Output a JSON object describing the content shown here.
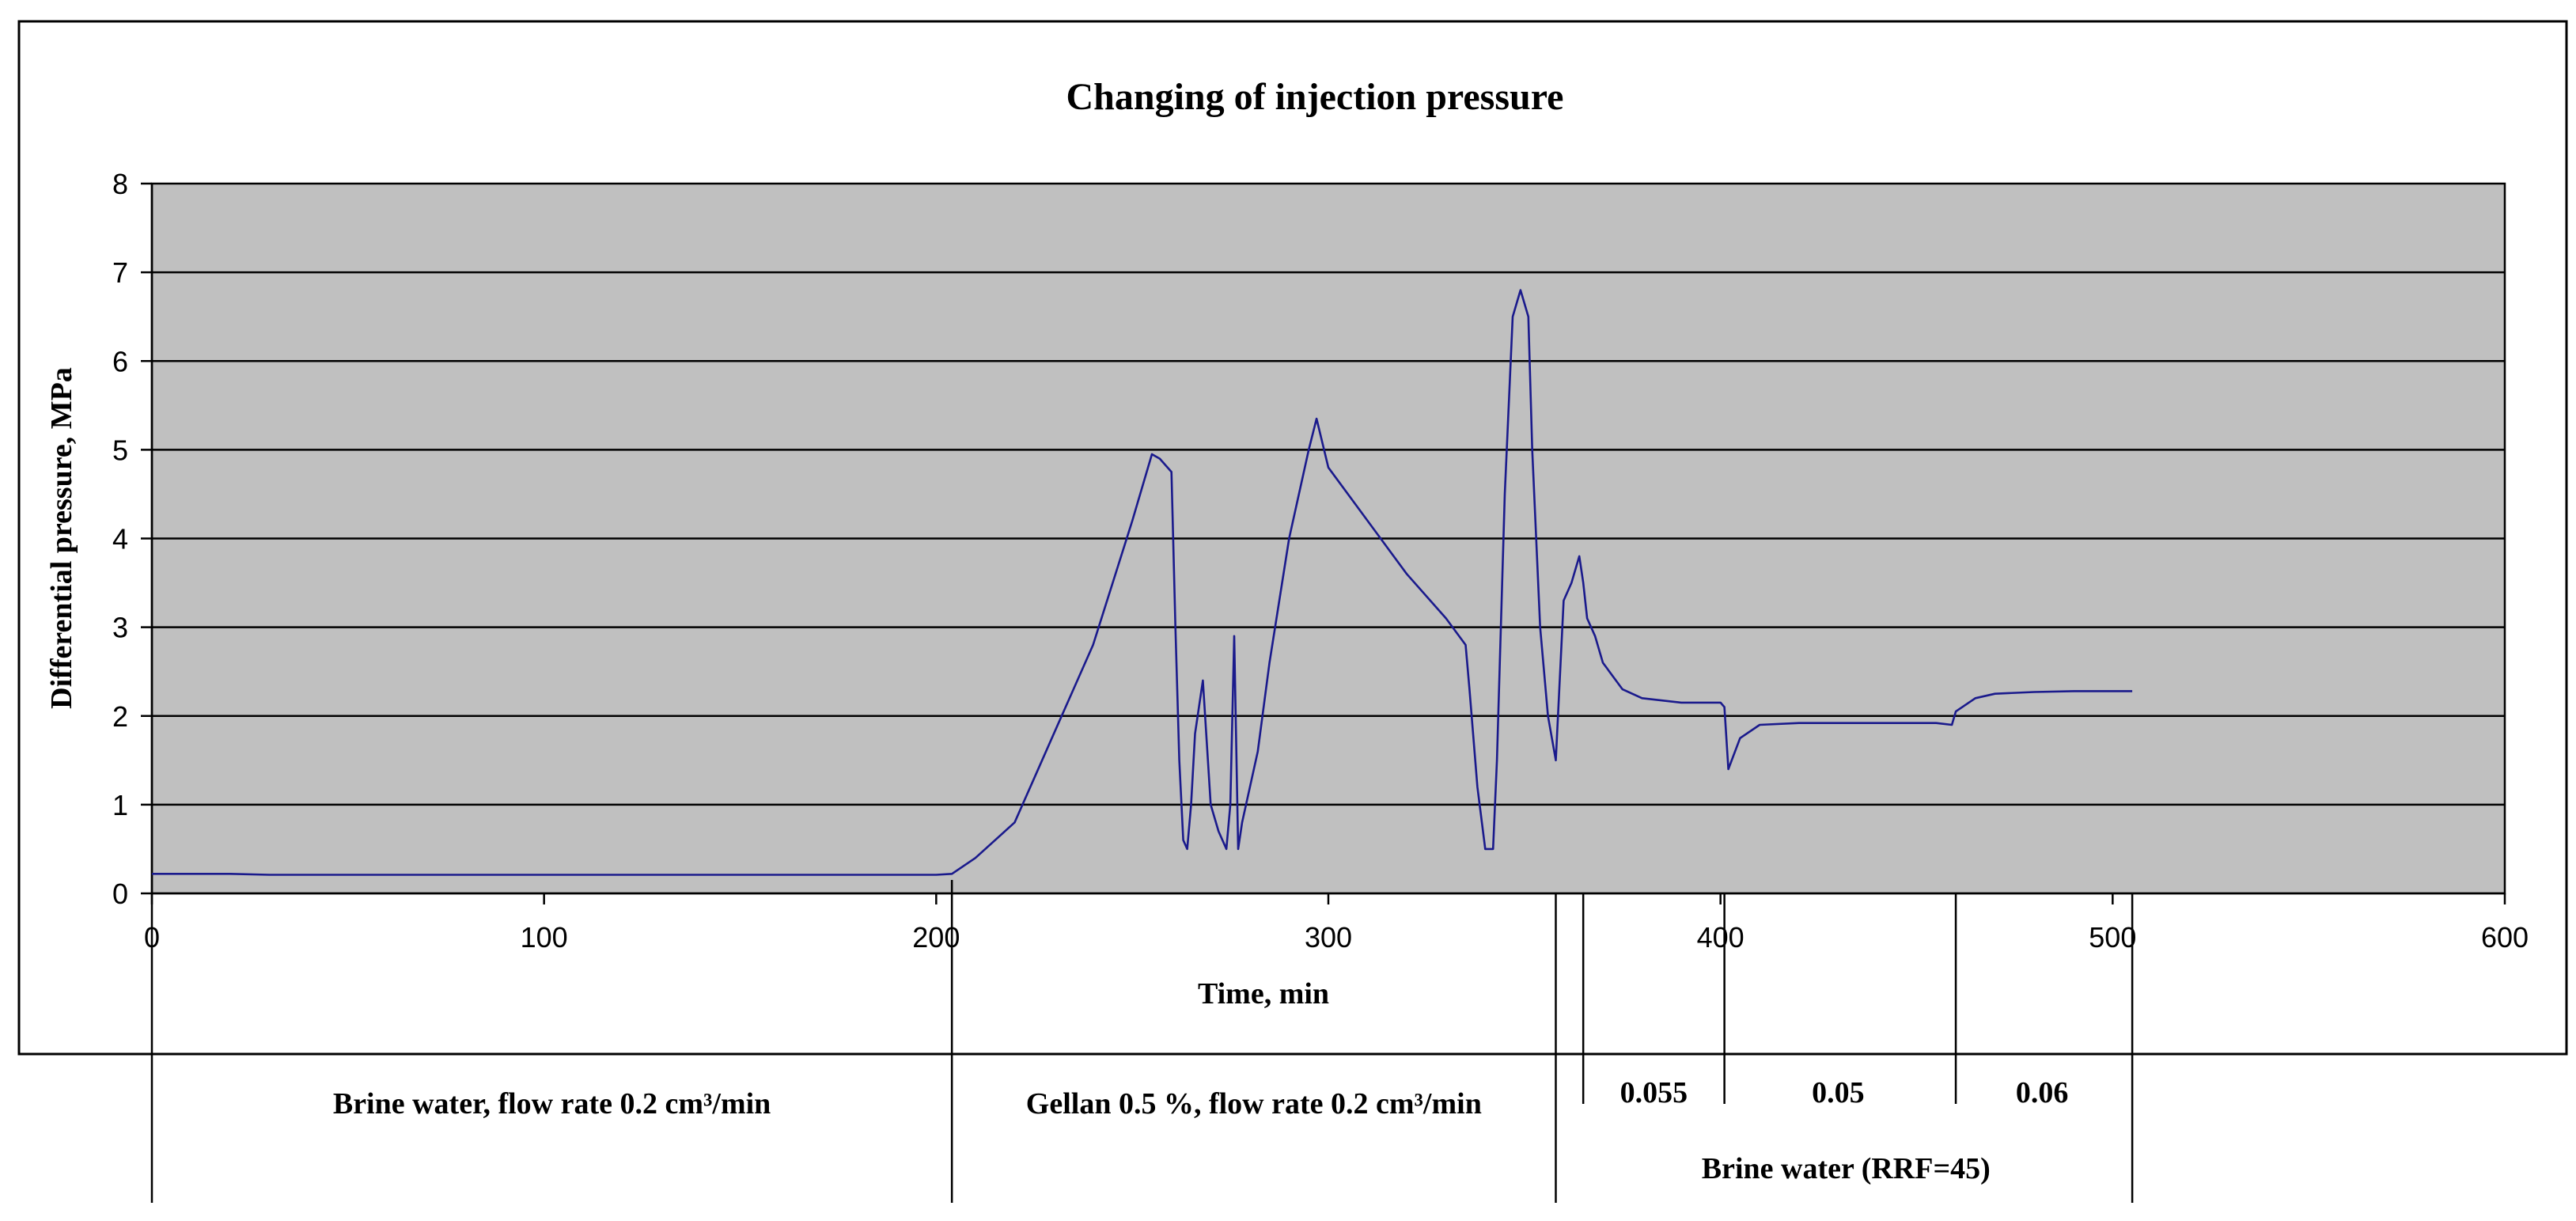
{
  "colors": {
    "plot_background": "#c0c0c0",
    "series_line": "#1a1a8c",
    "gridline": "#000000",
    "frame": "#000000",
    "page_background": "#ffffff"
  },
  "chart_data": {
    "type": "line",
    "title": "Changing of injection pressure",
    "xlabel": "Time, min",
    "ylabel": "Differential pressure, MPa",
    "xlim": [
      0,
      600
    ],
    "ylim": [
      0,
      8
    ],
    "x_ticks": [
      0,
      100,
      200,
      300,
      400,
      500,
      600
    ],
    "y_ticks": [
      0,
      1,
      2,
      3,
      4,
      5,
      6,
      7,
      8
    ],
    "grid": true,
    "legend": "none",
    "series": [
      {
        "name": "Differential pressure",
        "x": [
          0,
          10,
          20,
          30,
          50,
          80,
          100,
          120,
          150,
          180,
          200,
          204,
          210,
          220,
          225,
          230,
          235,
          240,
          245,
          250,
          255,
          257,
          260,
          261,
          262,
          263,
          264,
          265,
          266,
          268,
          270,
          272,
          274,
          275,
          276,
          277,
          278,
          280,
          282,
          285,
          290,
          295,
          297,
          300,
          310,
          320,
          330,
          335,
          336,
          338,
          340,
          342,
          343,
          345,
          347,
          349,
          351,
          352,
          354,
          356,
          358,
          360,
          362,
          364,
          365,
          366,
          368,
          370,
          375,
          380,
          390,
          395,
          400,
          401,
          402,
          405,
          410,
          420,
          440,
          455,
          459,
          460,
          465,
          470,
          480,
          490,
          500,
          505
        ],
        "values": [
          0.22,
          0.22,
          0.22,
          0.21,
          0.21,
          0.21,
          0.21,
          0.21,
          0.21,
          0.21,
          0.21,
          0.22,
          0.4,
          0.8,
          1.3,
          1.8,
          2.3,
          2.8,
          3.5,
          4.2,
          4.95,
          4.9,
          4.75,
          3.0,
          1.5,
          0.6,
          0.5,
          1.0,
          1.8,
          2.4,
          1.0,
          0.7,
          0.5,
          1.0,
          2.9,
          0.5,
          0.8,
          1.2,
          1.6,
          2.6,
          4.0,
          5.0,
          5.35,
          4.8,
          4.2,
          3.6,
          3.1,
          2.8,
          2.3,
          1.2,
          0.5,
          0.5,
          1.5,
          4.5,
          6.5,
          6.8,
          6.5,
          5.0,
          3.0,
          2.0,
          1.5,
          3.3,
          3.5,
          3.8,
          3.5,
          3.1,
          2.9,
          2.6,
          2.3,
          2.2,
          2.15,
          2.15,
          2.15,
          2.1,
          1.4,
          1.75,
          1.9,
          1.92,
          1.92,
          1.92,
          1.9,
          2.05,
          2.2,
          2.25,
          2.27,
          2.28,
          2.28,
          2.28
        ]
      }
    ],
    "segment_markers_x": [
      0,
      204,
      358,
      365,
      401,
      460,
      505
    ],
    "annotations": [
      {
        "id": "brine-1",
        "text": "Brine water, flow rate 0.2 cm³/min",
        "x_center": 102
      },
      {
        "id": "gellan",
        "text": "Gellan 0.5 %, flow rate 0.2 cm³/min",
        "x_center": 281
      },
      {
        "id": "rate-0055",
        "text": "0.055",
        "x_center": 383
      },
      {
        "id": "rate-005",
        "text": "0.05",
        "x_center": 430
      },
      {
        "id": "rate-006",
        "text": "0.06",
        "x_center": 482
      },
      {
        "id": "brine-rrf",
        "text": "Brine water (RRF=45)",
        "x_center": 432
      }
    ]
  }
}
